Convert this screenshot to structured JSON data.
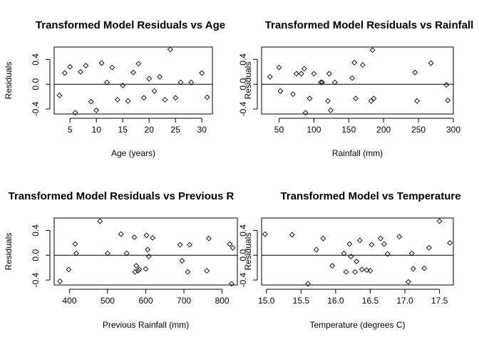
{
  "chart_data": [
    {
      "type": "scatter",
      "title": "Transformed Model Residuals vs Age",
      "xlabel": "Age (years)",
      "ylabel": "Residuals",
      "xlim": [
        2,
        32
      ],
      "ylim": [
        -0.48,
        0.6
      ],
      "xticks": [
        "5",
        "10",
        "15",
        "20",
        "25",
        "30"
      ],
      "xtick_values": [
        5,
        10,
        15,
        20,
        25,
        30
      ],
      "yticks": [
        "-0.4",
        "0.0",
        "0.4"
      ],
      "ytick_values": [
        -0.4,
        0.0,
        0.4
      ],
      "hline": 0,
      "grid": false,
      "x": [
        3,
        4,
        5,
        6,
        7,
        8,
        9,
        10,
        11,
        12,
        13,
        14,
        15,
        16,
        17,
        18,
        19,
        20,
        21,
        22,
        23,
        24,
        25,
        26,
        28,
        30,
        31
      ],
      "y": [
        -0.18,
        0.18,
        0.28,
        -0.46,
        0.2,
        0.3,
        -0.28,
        -0.42,
        0.34,
        0.03,
        0.27,
        -0.25,
        -0.02,
        -0.27,
        0.19,
        0.33,
        -0.22,
        0.09,
        -0.11,
        0.12,
        -0.25,
        0.56,
        -0.22,
        0.03,
        0.03,
        0.18,
        -0.21
      ]
    },
    {
      "type": "scatter",
      "title": "Transformed Model Residuals vs Rainfall",
      "xlabel": "Rainfall (mm)",
      "ylabel": "Residuals",
      "xlim": [
        25,
        300
      ],
      "ylim": [
        -0.48,
        0.6
      ],
      "xticks": [
        "50",
        "100",
        "150",
        "200",
        "250",
        "300"
      ],
      "xtick_values": [
        50,
        100,
        150,
        200,
        250,
        300
      ],
      "yticks": [
        "-0.4",
        "0.0",
        "0.4"
      ],
      "ytick_values": [
        -0.4,
        0.0,
        0.4
      ],
      "hline": 0,
      "grid": false,
      "x": [
        37,
        50,
        52,
        70,
        75,
        82,
        86,
        88,
        94,
        100,
        110,
        112,
        120,
        122,
        124,
        130,
        155,
        158,
        160,
        170,
        182,
        184,
        186,
        245,
        248,
        268,
        290,
        292
      ],
      "y": [
        0.12,
        0.27,
        -0.11,
        -0.16,
        0.17,
        0.17,
        0.25,
        -0.46,
        -0.23,
        0.17,
        0.03,
        0.03,
        -0.27,
        0.17,
        -0.42,
        0.03,
        0.1,
        0.35,
        -0.23,
        0.31,
        -0.27,
        0.55,
        -0.23,
        0.19,
        -0.27,
        0.34,
        -0.01,
        -0.26
      ]
    },
    {
      "type": "scatter",
      "title": "Transformed Model Residuals vs Previous R",
      "xlabel": "Previous Rainfall (mm)",
      "ylabel": "Residuals",
      "xlim": [
        360,
        840
      ],
      "ylim": [
        -0.48,
        0.6
      ],
      "xticks": [
        "400",
        "500",
        "600",
        "700",
        "800"
      ],
      "xtick_values": [
        400,
        500,
        600,
        700,
        800
      ],
      "yticks": [
        "-0.4",
        "0.0",
        "0.4"
      ],
      "ytick_values": [
        -0.4,
        0.0,
        0.4
      ],
      "hline": 0,
      "grid": false,
      "x": [
        375,
        398,
        415,
        418,
        480,
        500,
        535,
        550,
        570,
        572,
        575,
        580,
        583,
        600,
        602,
        605,
        608,
        618,
        690,
        695,
        710,
        715,
        760,
        765,
        820,
        825,
        828
      ],
      "y": [
        -0.42,
        -0.23,
        0.18,
        0.03,
        0.55,
        0.03,
        0.34,
        0.03,
        0.29,
        -0.27,
        -0.17,
        -0.25,
        -0.23,
        -0.22,
        0.32,
        0.09,
        -0.02,
        0.28,
        0.17,
        -0.09,
        -0.27,
        0.17,
        -0.25,
        0.27,
        0.18,
        -0.46,
        0.12
      ]
    },
    {
      "type": "scatter",
      "title": "Transformed Model vs Temperature",
      "xlabel": "Temperature (degrees C)",
      "ylabel": "Residuals",
      "xlim": [
        14.93,
        17.7
      ],
      "ylim": [
        -0.48,
        0.6
      ],
      "xticks": [
        "15.0",
        "15.5",
        "16.0",
        "16.5",
        "17.0",
        "17.5"
      ],
      "xtick_values": [
        15.0,
        15.5,
        16.0,
        16.5,
        17.0,
        17.5
      ],
      "yticks": [
        "-0.4",
        "0.0",
        "0.4"
      ],
      "ytick_values": [
        -0.4,
        0.0,
        0.4
      ],
      "hline": 0,
      "grid": false,
      "x": [
        14.98,
        15.37,
        15.6,
        15.72,
        15.82,
        15.95,
        16.12,
        16.15,
        16.2,
        16.22,
        16.28,
        16.3,
        16.35,
        16.38,
        16.45,
        16.5,
        16.52,
        16.65,
        16.7,
        16.75,
        16.92,
        17.05,
        17.1,
        17.12,
        17.28,
        17.35,
        17.5,
        17.65
      ],
      "y": [
        0.34,
        0.33,
        -0.46,
        0.09,
        0.27,
        -0.17,
        0.03,
        -0.27,
        0.18,
        -0.02,
        -0.27,
        -0.1,
        0.24,
        -0.23,
        -0.24,
        -0.25,
        0.17,
        0.27,
        0.18,
        0.02,
        0.3,
        -0.43,
        0.03,
        -0.22,
        -0.21,
        0.12,
        0.55,
        0.2
      ]
    }
  ]
}
